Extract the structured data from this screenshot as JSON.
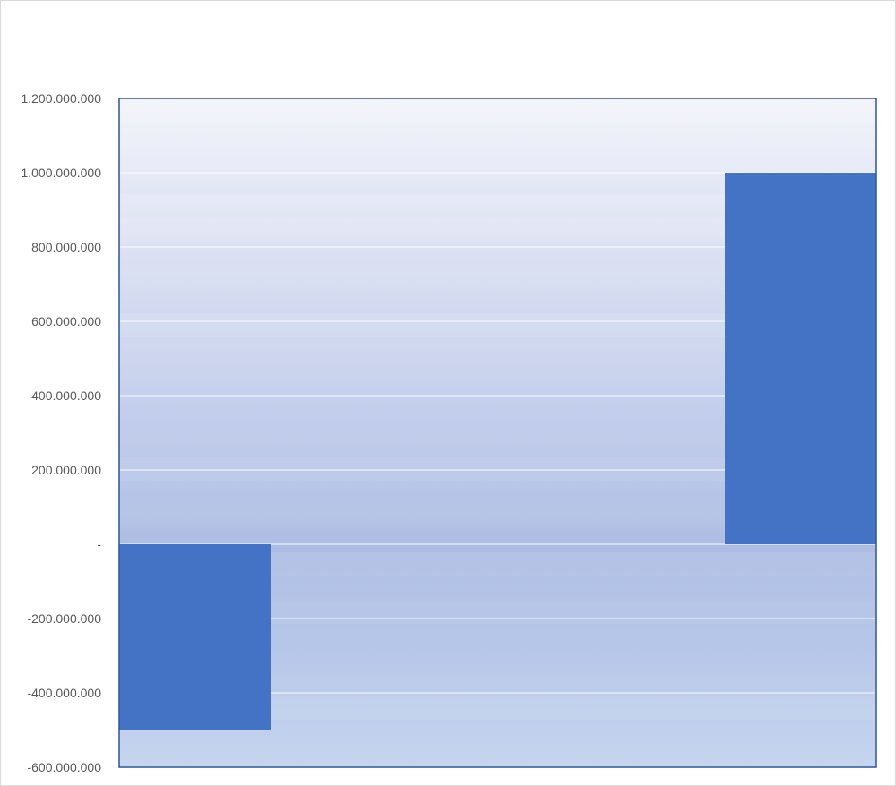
{
  "chart_data": {
    "type": "bar",
    "title": "",
    "xlabel": "",
    "ylabel": "",
    "categories": [
      "",
      "",
      "",
      "",
      ""
    ],
    "values": [
      -500000000,
      null,
      null,
      null,
      1000000000
    ],
    "ylim": [
      -600000000,
      1200000000
    ],
    "yticks": [
      {
        "value": 1200000000,
        "label": "1.200.000.000"
      },
      {
        "value": 1000000000,
        "label": "1.000.000.000"
      },
      {
        "value": 800000000,
        "label": "800.000.000"
      },
      {
        "value": 600000000,
        "label": "600.000.000"
      },
      {
        "value": 400000000,
        "label": "400.000.000"
      },
      {
        "value": 200000000,
        "label": "200.000.000"
      },
      {
        "value": 0,
        "label": "-"
      },
      {
        "value": -200000000,
        "label": "-200.000.000"
      },
      {
        "value": -400000000,
        "label": "-400.000.000"
      },
      {
        "value": -600000000,
        "label": "-600.000.000"
      }
    ],
    "grid": true,
    "legend": "none",
    "colors": {
      "bar": "#4472c4",
      "plot_border": "#2f5597",
      "gridline": "#ffffff",
      "tick_text": "#595959",
      "background_top": "#f4f5fb",
      "background_bottom": "#abbbe3"
    }
  }
}
